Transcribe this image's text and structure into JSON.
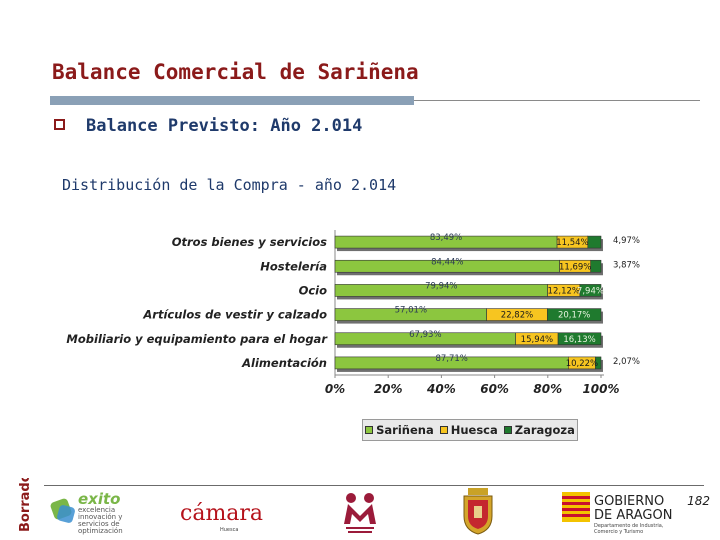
{
  "header": {
    "title": "Balance Comercial de Sariñena",
    "bullet_text": "Balance Previsto: Año 2.014",
    "subtitle": "Distribución de la Compra - año 2.014"
  },
  "chart_data": {
    "type": "bar",
    "orientation": "horizontal",
    "stacked": true,
    "categories": [
      "Otros bienes y servicios",
      "Hostelería",
      "Ocio",
      "Artículos de vestir y calzado",
      "Mobiliario y equipamiento para el hogar",
      "Alimentación"
    ],
    "series": [
      {
        "name": "Sariñena",
        "color": "#8cc63f",
        "values": [
          83.49,
          84.44,
          79.94,
          57.01,
          67.93,
          87.71
        ],
        "labels": [
          "83,49%",
          "84,44%",
          "79,94%",
          "57,01%",
          "67,93%",
          "87,71%"
        ]
      },
      {
        "name": "Huesca",
        "color": "#f7c520",
        "values": [
          11.54,
          11.69,
          12.12,
          22.82,
          15.94,
          10.22
        ],
        "labels": [
          "11,54%",
          "11,69%",
          "12,12%",
          "22,82%",
          "15,94%",
          "10,22%"
        ]
      },
      {
        "name": "Zaragoza",
        "color": "#1f7a2e",
        "values": [
          4.97,
          3.87,
          7.94,
          20.17,
          16.13,
          2.07
        ],
        "labels": [
          "4,97%",
          "3,87%",
          "7,94%",
          "20,17%",
          "16,13%",
          "2,07%"
        ]
      }
    ],
    "xlim": [
      0,
      100
    ],
    "x_ticks": [
      "0%",
      "20%",
      "40%",
      "60%",
      "80%",
      "100%"
    ],
    "legend_position": "bottom",
    "legend": [
      "Sariñena",
      "Huesca",
      "Zaragoza"
    ]
  },
  "footer": {
    "page_number": "182",
    "stamp_text": "Borrador",
    "logos": {
      "exito": {
        "name": "exito",
        "lines": [
          "excelencia",
          "innovación y",
          "servicios de",
          "optimización"
        ]
      },
      "camara": {
        "name": "cámara",
        "sub": "Huesca"
      },
      "gobierno": {
        "line1": "GOBIERNO",
        "line2": "DE ARAGON",
        "sub1": "Departamento de Industria,",
        "sub2": "Comercio y Turismo"
      }
    }
  },
  "colors": {
    "title": "#8b1a1a",
    "text_blue": "#1f3a6b",
    "sarinena": "#8cc63f",
    "huesca": "#f7c520",
    "zaragoza": "#1f7a2e"
  }
}
